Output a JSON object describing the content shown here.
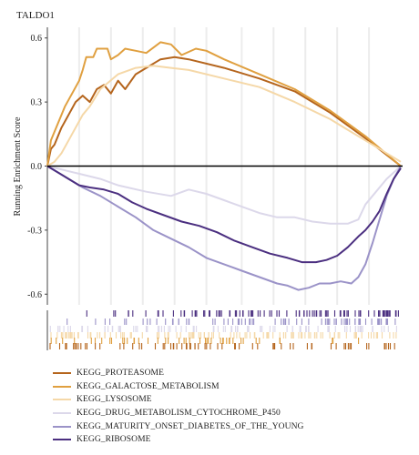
{
  "chart_data": {
    "type": "line",
    "title": "TALDO1",
    "xlabel": "",
    "ylabel": "Running Enrichment Score",
    "ylim": [
      -0.65,
      0.65
    ],
    "yticks": [
      0.6,
      0.3,
      0.0,
      -0.3,
      -0.6
    ],
    "ytick_labels": [
      "0.6",
      "0.3",
      "0.0",
      "-0.3",
      "-0.6"
    ],
    "xlim": [
      0,
      1
    ],
    "legend_position": "bottom",
    "grid": "vertical",
    "series": [
      {
        "name": "KEGG_PROTEASOME",
        "color": "#b5651d",
        "points": [
          [
            0,
            0
          ],
          [
            0.01,
            0.08
          ],
          [
            0.02,
            0.1
          ],
          [
            0.04,
            0.18
          ],
          [
            0.06,
            0.24
          ],
          [
            0.08,
            0.3
          ],
          [
            0.1,
            0.33
          ],
          [
            0.12,
            0.3
          ],
          [
            0.14,
            0.36
          ],
          [
            0.16,
            0.38
          ],
          [
            0.18,
            0.34
          ],
          [
            0.2,
            0.4
          ],
          [
            0.22,
            0.36
          ],
          [
            0.25,
            0.43
          ],
          [
            0.28,
            0.46
          ],
          [
            0.32,
            0.5
          ],
          [
            0.36,
            0.51
          ],
          [
            0.4,
            0.5
          ],
          [
            0.5,
            0.46
          ],
          [
            0.6,
            0.41
          ],
          [
            0.7,
            0.35
          ],
          [
            0.8,
            0.25
          ],
          [
            0.9,
            0.13
          ],
          [
            1.0,
            0.0
          ]
        ]
      },
      {
        "name": "KEGG_GALACTOSE_METABOLISM",
        "color": "#e0a040",
        "points": [
          [
            0,
            0
          ],
          [
            0.01,
            0.12
          ],
          [
            0.03,
            0.2
          ],
          [
            0.05,
            0.28
          ],
          [
            0.07,
            0.34
          ],
          [
            0.09,
            0.4
          ],
          [
            0.1,
            0.45
          ],
          [
            0.11,
            0.51
          ],
          [
            0.13,
            0.51
          ],
          [
            0.14,
            0.55
          ],
          [
            0.17,
            0.55
          ],
          [
            0.18,
            0.5
          ],
          [
            0.2,
            0.52
          ],
          [
            0.22,
            0.55
          ],
          [
            0.25,
            0.54
          ],
          [
            0.28,
            0.53
          ],
          [
            0.32,
            0.58
          ],
          [
            0.35,
            0.57
          ],
          [
            0.38,
            0.52
          ],
          [
            0.42,
            0.55
          ],
          [
            0.45,
            0.54
          ],
          [
            0.5,
            0.5
          ],
          [
            0.6,
            0.43
          ],
          [
            0.7,
            0.36
          ],
          [
            0.8,
            0.26
          ],
          [
            0.9,
            0.14
          ],
          [
            1.0,
            0.0
          ]
        ]
      },
      {
        "name": "KEGG_LYSOSOME",
        "color": "#f5d8a8",
        "points": [
          [
            0,
            0
          ],
          [
            0.02,
            0.02
          ],
          [
            0.04,
            0.06
          ],
          [
            0.06,
            0.12
          ],
          [
            0.08,
            0.18
          ],
          [
            0.1,
            0.24
          ],
          [
            0.12,
            0.28
          ],
          [
            0.15,
            0.36
          ],
          [
            0.2,
            0.43
          ],
          [
            0.25,
            0.46
          ],
          [
            0.3,
            0.47
          ],
          [
            0.35,
            0.46
          ],
          [
            0.4,
            0.45
          ],
          [
            0.5,
            0.41
          ],
          [
            0.6,
            0.37
          ],
          [
            0.7,
            0.3
          ],
          [
            0.8,
            0.22
          ],
          [
            0.88,
            0.14
          ],
          [
            0.94,
            0.08
          ],
          [
            1.0,
            0.02
          ]
        ]
      },
      {
        "name": "KEGG_DRUG_METABOLISM_CYTOCHROME_P450",
        "color": "#dcd8ea",
        "points": [
          [
            0,
            0
          ],
          [
            0.05,
            -0.02
          ],
          [
            0.1,
            -0.04
          ],
          [
            0.15,
            -0.06
          ],
          [
            0.2,
            -0.09
          ],
          [
            0.28,
            -0.12
          ],
          [
            0.35,
            -0.14
          ],
          [
            0.4,
            -0.11
          ],
          [
            0.45,
            -0.13
          ],
          [
            0.5,
            -0.16
          ],
          [
            0.55,
            -0.19
          ],
          [
            0.6,
            -0.22
          ],
          [
            0.65,
            -0.24
          ],
          [
            0.7,
            -0.24
          ],
          [
            0.75,
            -0.26
          ],
          [
            0.8,
            -0.27
          ],
          [
            0.85,
            -0.27
          ],
          [
            0.88,
            -0.25
          ],
          [
            0.9,
            -0.18
          ],
          [
            0.93,
            -0.12
          ],
          [
            0.96,
            -0.06
          ],
          [
            1.0,
            0.0
          ]
        ]
      },
      {
        "name": "KEGG_MATURITY_ONSET_DIABETES_OF_THE_YOUNG",
        "color": "#9b93c8",
        "points": [
          [
            0,
            0
          ],
          [
            0.05,
            -0.05
          ],
          [
            0.1,
            -0.1
          ],
          [
            0.15,
            -0.14
          ],
          [
            0.2,
            -0.19
          ],
          [
            0.25,
            -0.24
          ],
          [
            0.3,
            -0.3
          ],
          [
            0.35,
            -0.34
          ],
          [
            0.4,
            -0.38
          ],
          [
            0.45,
            -0.43
          ],
          [
            0.5,
            -0.46
          ],
          [
            0.55,
            -0.49
          ],
          [
            0.6,
            -0.52
          ],
          [
            0.65,
            -0.55
          ],
          [
            0.68,
            -0.56
          ],
          [
            0.71,
            -0.58
          ],
          [
            0.74,
            -0.57
          ],
          [
            0.77,
            -0.55
          ],
          [
            0.8,
            -0.55
          ],
          [
            0.83,
            -0.54
          ],
          [
            0.86,
            -0.55
          ],
          [
            0.88,
            -0.52
          ],
          [
            0.9,
            -0.46
          ],
          [
            0.92,
            -0.36
          ],
          [
            0.94,
            -0.25
          ],
          [
            0.96,
            -0.14
          ],
          [
            0.98,
            -0.06
          ],
          [
            1.0,
            0.0
          ]
        ]
      },
      {
        "name": "KEGG_RIBOSOME",
        "color": "#4b2f80",
        "points": [
          [
            0,
            0
          ],
          [
            0.03,
            -0.03
          ],
          [
            0.06,
            -0.06
          ],
          [
            0.09,
            -0.09
          ],
          [
            0.12,
            -0.1
          ],
          [
            0.16,
            -0.11
          ],
          [
            0.2,
            -0.13
          ],
          [
            0.24,
            -0.17
          ],
          [
            0.28,
            -0.2
          ],
          [
            0.33,
            -0.23
          ],
          [
            0.38,
            -0.26
          ],
          [
            0.43,
            -0.28
          ],
          [
            0.48,
            -0.31
          ],
          [
            0.53,
            -0.35
          ],
          [
            0.58,
            -0.38
          ],
          [
            0.63,
            -0.41
          ],
          [
            0.68,
            -0.43
          ],
          [
            0.72,
            -0.45
          ],
          [
            0.76,
            -0.45
          ],
          [
            0.79,
            -0.44
          ],
          [
            0.82,
            -0.42
          ],
          [
            0.85,
            -0.38
          ],
          [
            0.88,
            -0.33
          ],
          [
            0.9,
            -0.3
          ],
          [
            0.92,
            -0.26
          ],
          [
            0.94,
            -0.21
          ],
          [
            0.96,
            -0.13
          ],
          [
            0.98,
            -0.06
          ],
          [
            1.0,
            -0.01
          ]
        ]
      }
    ]
  }
}
